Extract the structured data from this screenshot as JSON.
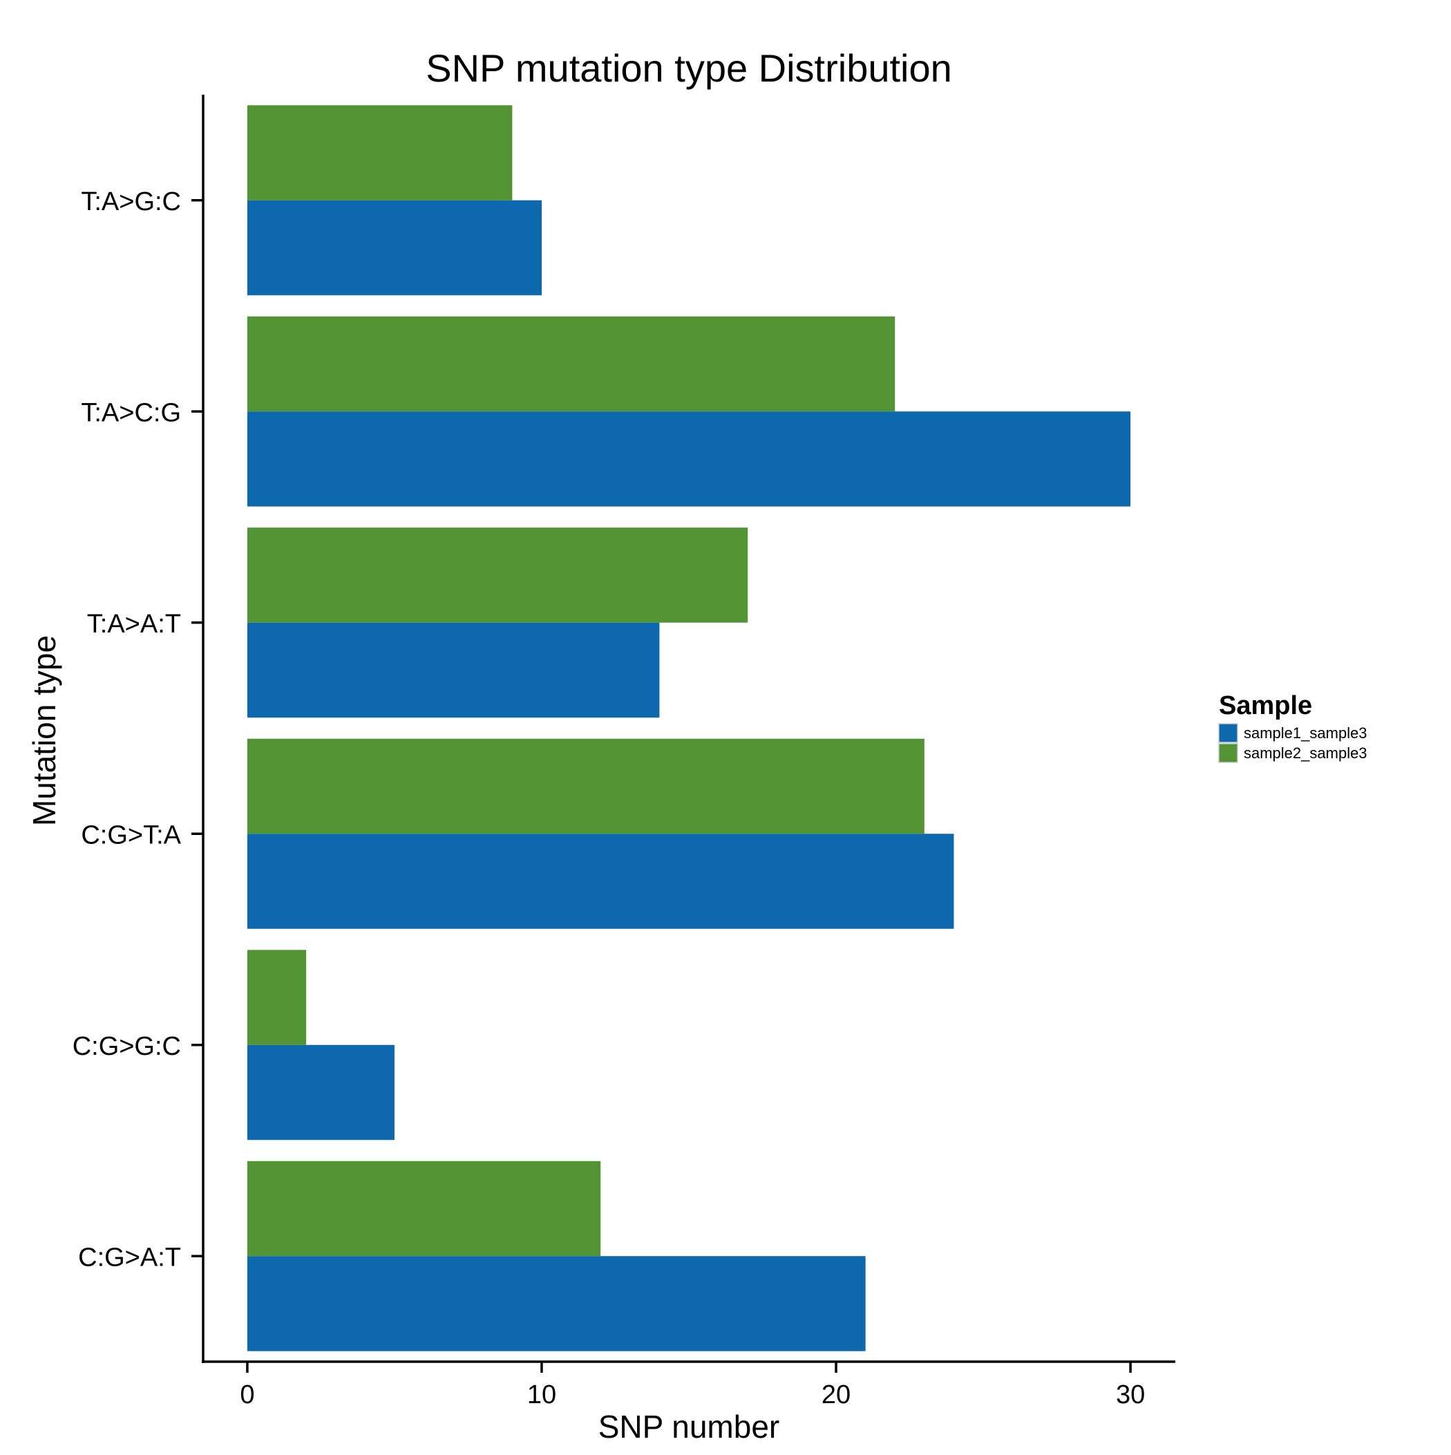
{
  "chart_data": {
    "type": "bar",
    "orientation": "horizontal",
    "title": "SNP mutation type Distribution",
    "xlabel": "SNP number",
    "ylabel": "Mutation type",
    "categories": [
      "C:G>A:T",
      "C:G>G:C",
      "C:G>T:A",
      "T:A>A:T",
      "T:A>C:G",
      "T:A>G:C"
    ],
    "series": [
      {
        "name": "sample1_sample3",
        "color": "#0d68ae",
        "values": [
          21,
          5,
          24,
          14,
          30,
          10
        ]
      },
      {
        "name": "sample2_sample3",
        "color": "#529434",
        "values": [
          12,
          2,
          23,
          17,
          22,
          9
        ]
      }
    ],
    "xlim": [
      -1.5,
      31.5
    ],
    "xticks": [
      0,
      10,
      20,
      30
    ],
    "xtick_labels": [
      "0",
      "10",
      "20",
      "30"
    ],
    "grid": false,
    "legend": {
      "title": "Sample",
      "position": "right"
    }
  }
}
